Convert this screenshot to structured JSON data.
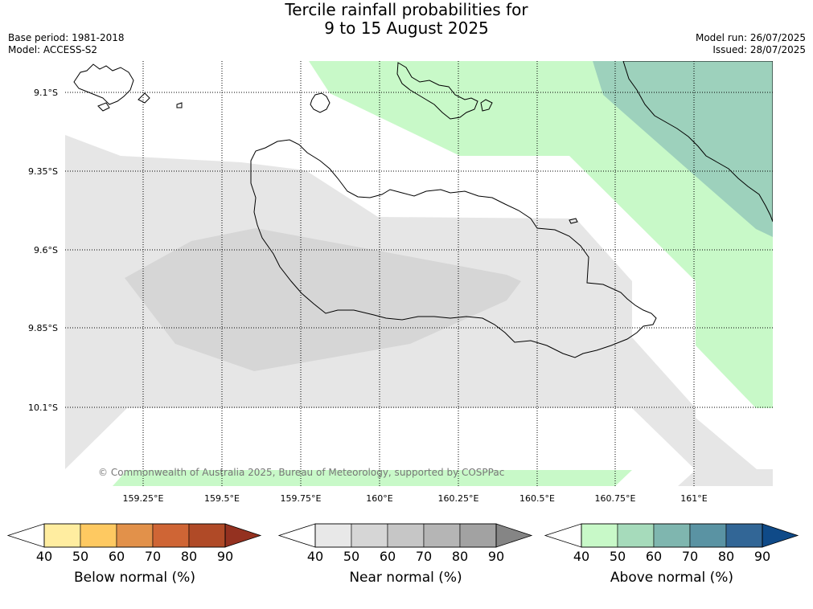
{
  "header": {
    "title_line1": "Tercile rainfall probabilities for",
    "title_line2": "9 to 15 August 2025",
    "base_period": "Base period: 1981-2018",
    "model": "Model: ACCESS-S2",
    "model_run": "Model run: 26/07/2025",
    "issued": "Issued: 28/07/2025"
  },
  "map": {
    "lat_labels": [
      "9.1°S",
      "9.35°S",
      "9.6°S",
      "9.85°S",
      "10.1°S"
    ],
    "lon_labels": [
      "159.25°E",
      "159.5°E",
      "159.75°E",
      "160°E",
      "160.25°E",
      "160.5°E",
      "160.75°E",
      "161°E"
    ],
    "copyright": "© Commonwealth of Australia 2025, Bureau of Meteorology, supported by COSPPac",
    "colors": {
      "near_40": "#e6e6e6",
      "near_50": "#d6d6d6",
      "above_40": "#c8f9c8",
      "above_60": "#9dd1bc",
      "coast": "#000000",
      "grid": "#000000"
    }
  },
  "colorbars": [
    {
      "label": "Below normal (%)",
      "ticks": [
        "40",
        "50",
        "60",
        "70",
        "80",
        "90"
      ],
      "colors": [
        "#ffffff",
        "#ffeda0",
        "#fec961",
        "#e2914a",
        "#cf6535",
        "#b04a27",
        "#943120"
      ]
    },
    {
      "label": "Near normal (%)",
      "ticks": [
        "40",
        "50",
        "60",
        "70",
        "80",
        "90"
      ],
      "colors": [
        "#ffffff",
        "#e8e8e8",
        "#d6d6d6",
        "#c6c6c6",
        "#b5b5b5",
        "#a2a2a2",
        "#858585"
      ]
    },
    {
      "label": "Above normal (%)",
      "ticks": [
        "40",
        "50",
        "60",
        "70",
        "80",
        "90"
      ],
      "colors": [
        "#ffffff",
        "#c8f9c8",
        "#a6dbbb",
        "#7fb6af",
        "#5a93a3",
        "#326696",
        "#0f4a88"
      ]
    }
  ]
}
